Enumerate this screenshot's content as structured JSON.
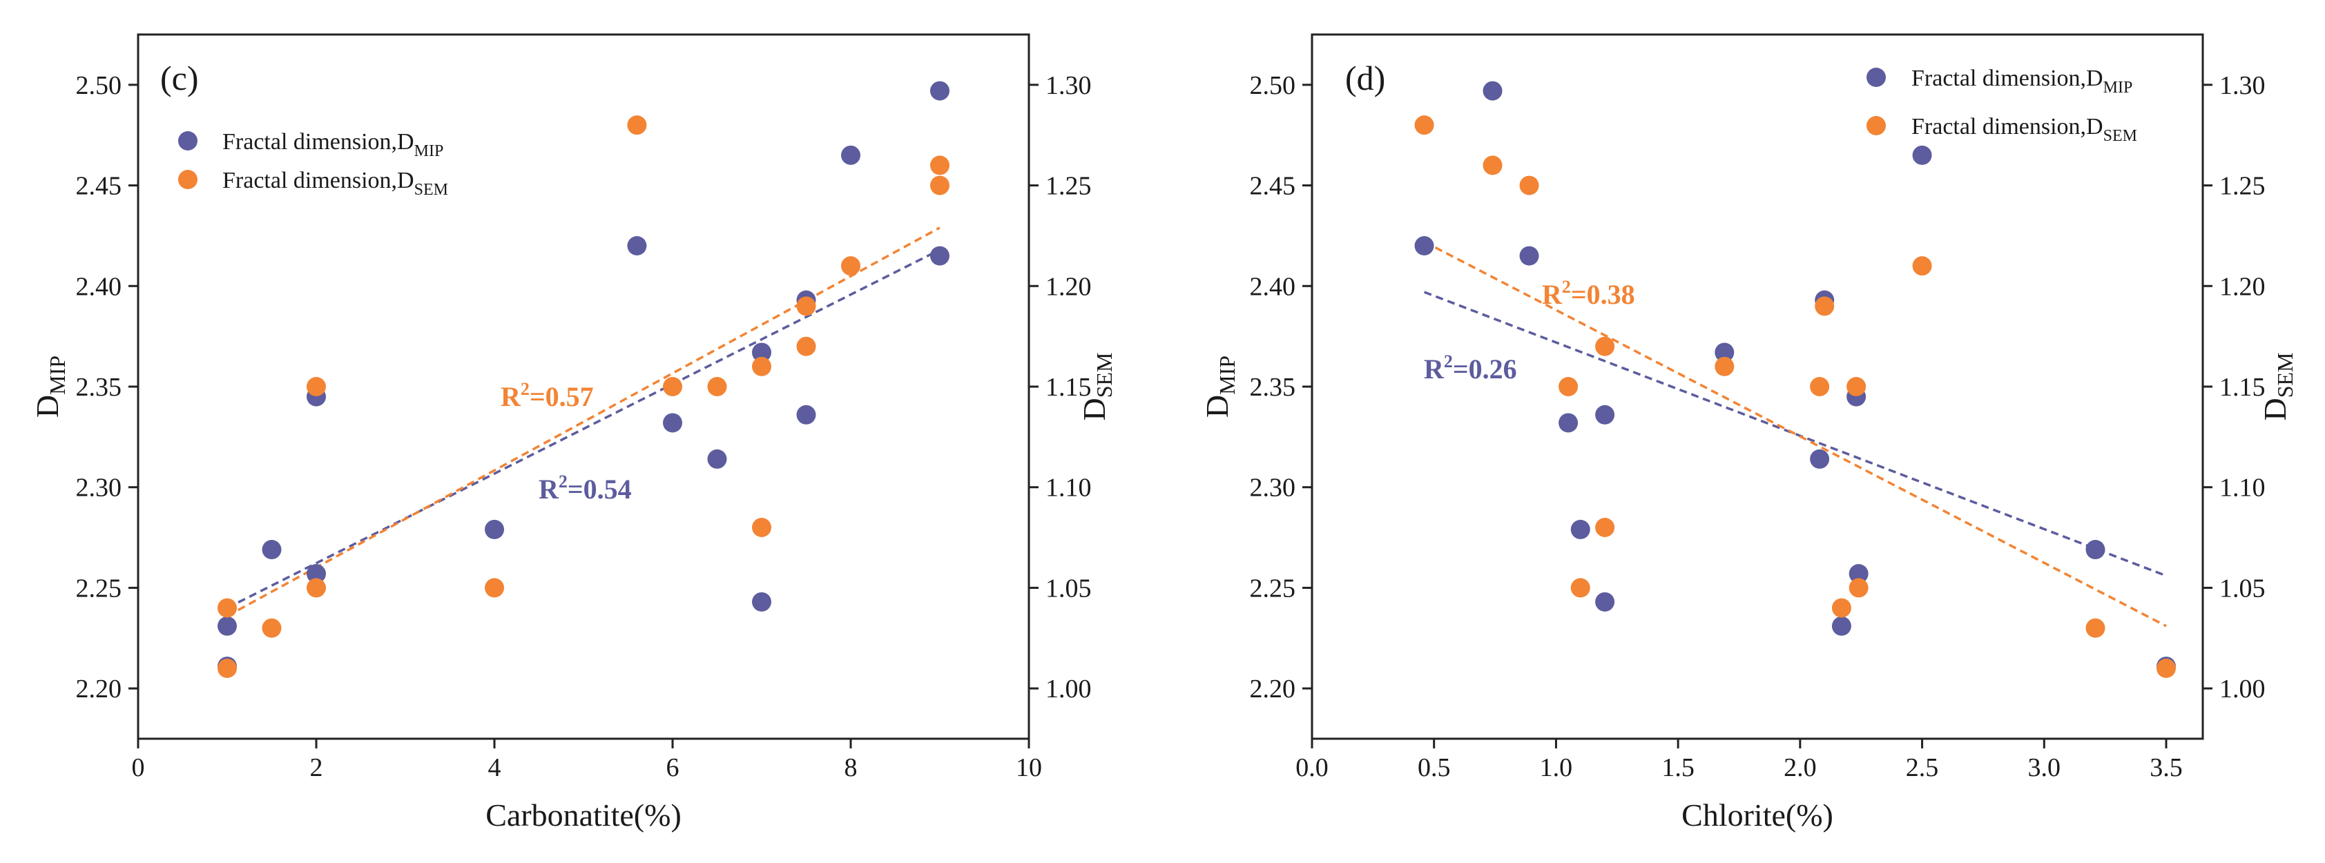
{
  "colors": {
    "mip": "#5c5c9e",
    "sem": "#f28434",
    "axis": "#222222"
  },
  "chart_data": [
    {
      "type": "scatter",
      "panel_label": "(c)",
      "xlabel": "Carbonatite(%)",
      "ylabel_left": {
        "base": "D",
        "sub": "MIP"
      },
      "ylabel_right": {
        "base": "D",
        "sub": "SEM"
      },
      "xlim": [
        0,
        10
      ],
      "ylim_left": [
        2.175,
        2.525
      ],
      "ylim_right": [
        0.975,
        1.325
      ],
      "x_ticks": [
        0,
        2,
        4,
        6,
        8,
        10
      ],
      "x_tick_labels": [
        "0",
        "2",
        "4",
        "6",
        "8",
        "10"
      ],
      "y_ticks_left": [
        2.2,
        2.25,
        2.3,
        2.35,
        2.4,
        2.45,
        2.5
      ],
      "y_tick_labels_left": [
        "2.20",
        "2.25",
        "2.30",
        "2.35",
        "2.40",
        "2.45",
        "2.50"
      ],
      "y_ticks_right": [
        1.0,
        1.05,
        1.1,
        1.15,
        1.2,
        1.25,
        1.3
      ],
      "y_tick_labels_right": [
        "1.00",
        "1.05",
        "1.10",
        "1.15",
        "1.20",
        "1.25",
        "1.30"
      ],
      "legend_position": "top-left",
      "series": [
        {
          "name": "Fractal dimension,D",
          "name_sub": "MIP",
          "axis": "left",
          "color_key": "mip",
          "points": [
            [
              1,
              2.231
            ],
            [
              1,
              2.211
            ],
            [
              1.5,
              2.269
            ],
            [
              2,
              2.345
            ],
            [
              2,
              2.257
            ],
            [
              4,
              2.279
            ],
            [
              5.6,
              2.42
            ],
            [
              6,
              2.332
            ],
            [
              6.5,
              2.314
            ],
            [
              7,
              2.367
            ],
            [
              7,
              2.243
            ],
            [
              7.5,
              2.393
            ],
            [
              7.5,
              2.336
            ],
            [
              8,
              2.465
            ],
            [
              9,
              2.497
            ],
            [
              9,
              2.415
            ]
          ],
          "fit": {
            "x": [
              1,
              9
            ],
            "y": [
              2.24,
              2.418
            ]
          },
          "r2_label": "=0.54",
          "r2_value": 0.54
        },
        {
          "name": "Fractal dimension,D",
          "name_sub": "SEM",
          "axis": "right",
          "color_key": "sem",
          "points": [
            [
              1,
              1.04
            ],
            [
              1,
              1.01
            ],
            [
              1.5,
              1.03
            ],
            [
              2,
              1.15
            ],
            [
              2,
              1.05
            ],
            [
              4,
              1.05
            ],
            [
              5.6,
              1.28
            ],
            [
              6,
              1.15
            ],
            [
              6.5,
              1.15
            ],
            [
              7,
              1.16
            ],
            [
              7,
              1.08
            ],
            [
              7.5,
              1.19
            ],
            [
              7.5,
              1.17
            ],
            [
              8,
              1.21
            ],
            [
              9,
              1.26
            ],
            [
              9,
              1.25
            ]
          ],
          "fit": {
            "x": [
              1,
              9
            ],
            "y": [
              1.036,
              1.229
            ]
          },
          "r2_label": "=0.57",
          "r2_value": 0.57
        }
      ]
    },
    {
      "type": "scatter",
      "panel_label": "(d)",
      "xlabel": "Chlorite(%)",
      "ylabel_left": {
        "base": "D",
        "sub": "MIP"
      },
      "ylabel_right": {
        "base": "D",
        "sub": "SEM"
      },
      "xlim": [
        0,
        3.65
      ],
      "ylim_left": [
        2.175,
        2.525
      ],
      "ylim_right": [
        0.975,
        1.325
      ],
      "x_ticks": [
        0,
        0.5,
        1,
        1.5,
        2,
        2.5,
        3,
        3.5
      ],
      "x_tick_labels": [
        "0.0",
        "0.5",
        "1.0",
        "1.5",
        "2.0",
        "2.5",
        "3.0",
        "3.5"
      ],
      "y_ticks_left": [
        2.2,
        2.25,
        2.3,
        2.35,
        2.4,
        2.45,
        2.5
      ],
      "y_tick_labels_left": [
        "2.20",
        "2.25",
        "2.30",
        "2.35",
        "2.40",
        "2.45",
        "2.50"
      ],
      "y_ticks_right": [
        1.0,
        1.05,
        1.1,
        1.15,
        1.2,
        1.25,
        1.3
      ],
      "y_tick_labels_right": [
        "1.00",
        "1.05",
        "1.10",
        "1.15",
        "1.20",
        "1.25",
        "1.30"
      ],
      "legend_position": "top-right",
      "series": [
        {
          "name": "Fractal dimension,D",
          "name_sub": "MIP",
          "axis": "left",
          "color_key": "mip",
          "points": [
            [
              0.46,
              2.42
            ],
            [
              0.74,
              2.497
            ],
            [
              0.89,
              2.415
            ],
            [
              1.05,
              2.332
            ],
            [
              1.1,
              2.279
            ],
            [
              1.2,
              2.336
            ],
            [
              1.2,
              2.243
            ],
            [
              1.69,
              2.367
            ],
            [
              2.08,
              2.314
            ],
            [
              2.1,
              2.393
            ],
            [
              2.17,
              2.231
            ],
            [
              2.23,
              2.345
            ],
            [
              2.24,
              2.257
            ],
            [
              2.5,
              2.465
            ],
            [
              3.21,
              2.269
            ],
            [
              3.5,
              2.211
            ]
          ],
          "fit": {
            "x": [
              0.46,
              3.5
            ],
            "y": [
              2.397,
              2.256
            ]
          },
          "r2_label": "=0.26",
          "r2_value": 0.26
        },
        {
          "name": "Fractal dimension,D",
          "name_sub": "SEM",
          "axis": "right",
          "color_key": "sem",
          "points": [
            [
              0.46,
              1.28
            ],
            [
              0.74,
              1.26
            ],
            [
              0.89,
              1.25
            ],
            [
              1.05,
              1.15
            ],
            [
              1.1,
              1.05
            ],
            [
              1.2,
              1.17
            ],
            [
              1.2,
              1.08
            ],
            [
              1.69,
              1.16
            ],
            [
              2.08,
              1.15
            ],
            [
              2.1,
              1.19
            ],
            [
              2.17,
              1.04
            ],
            [
              2.23,
              1.15
            ],
            [
              2.24,
              1.05
            ],
            [
              2.5,
              1.21
            ],
            [
              3.21,
              1.03
            ],
            [
              3.5,
              1.01
            ]
          ],
          "fit": {
            "x": [
              0.46,
              3.5
            ],
            "y": [
              1.222,
              1.031
            ]
          },
          "r2_label": "=0.38",
          "r2_value": 0.38
        }
      ]
    }
  ]
}
